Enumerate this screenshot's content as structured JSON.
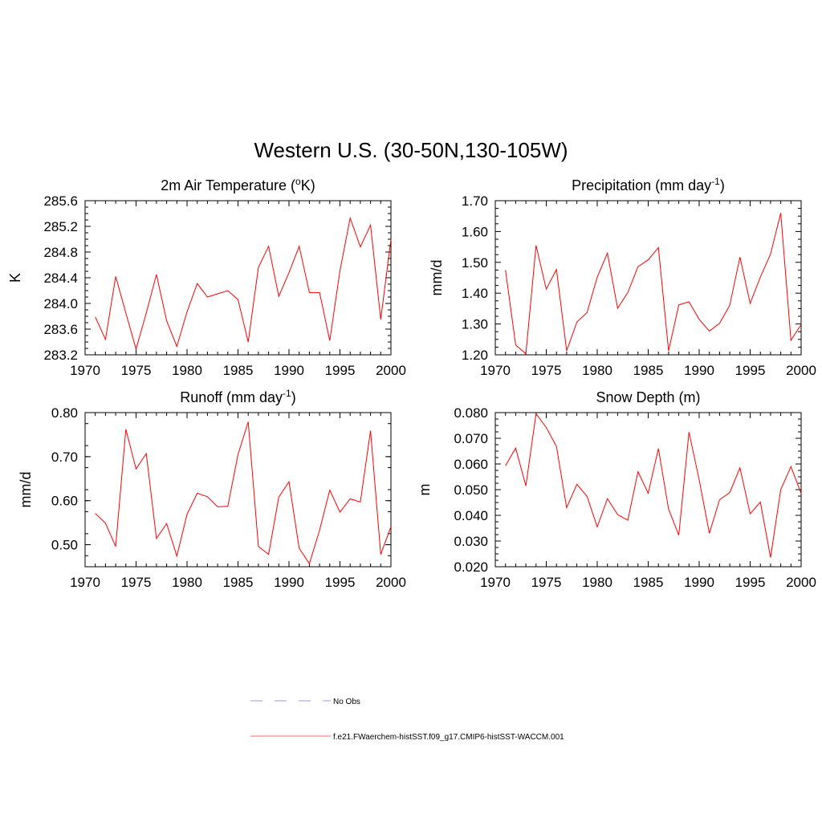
{
  "figure": {
    "title": "Western U.S. (30-50N,130-105W)"
  },
  "chart_data": [
    {
      "type": "line",
      "title": "2m Air Temperature (°K)",
      "title_parts": [
        "2m Air Temperature (",
        "o",
        "K)"
      ],
      "ylabel": "K",
      "xlim": [
        1970,
        2000
      ],
      "ylim": [
        283.2,
        285.6
      ],
      "xticks": [
        1970,
        1975,
        1980,
        1985,
        1990,
        1995,
        2000
      ],
      "yticks": [
        "283.2",
        "283.6",
        "284.0",
        "284.4",
        "284.8",
        "285.2",
        "285.6"
      ],
      "x": [
        1971,
        1972,
        1973,
        1974,
        1975,
        1976,
        1977,
        1978,
        1979,
        1980,
        1981,
        1982,
        1983,
        1984,
        1985,
        1986,
        1987,
        1988,
        1989,
        1990,
        1991,
        1992,
        1993,
        1994,
        1995,
        1996,
        1997,
        1998,
        1999,
        2000
      ],
      "series": [
        {
          "values": [
            283.79,
            283.44,
            284.42,
            283.85,
            283.29,
            283.85,
            284.45,
            283.73,
            283.33,
            283.87,
            284.31,
            284.1,
            284.15,
            284.2,
            284.06,
            283.4,
            284.56,
            284.89,
            284.11,
            284.48,
            284.89,
            284.17,
            284.17,
            283.42,
            284.51,
            285.33,
            284.88,
            285.22,
            283.75,
            285.0
          ],
          "color": "#ff0000"
        }
      ]
    },
    {
      "type": "line",
      "title": "Precipitation (mm day-1)",
      "title_parts": [
        "Precipitation (mm day",
        "-1",
        ")"
      ],
      "ylabel": "mm/d",
      "xlim": [
        1970,
        2000
      ],
      "ylim": [
        1.2,
        1.7
      ],
      "xticks": [
        1970,
        1975,
        1980,
        1985,
        1990,
        1995,
        2000
      ],
      "yticks": [
        "1.20",
        "1.30",
        "1.40",
        "1.50",
        "1.60",
        "1.70"
      ],
      "x": [
        1971,
        1972,
        1973,
        1974,
        1975,
        1976,
        1977,
        1978,
        1979,
        1980,
        1981,
        1982,
        1983,
        1984,
        1985,
        1986,
        1987,
        1988,
        1989,
        1990,
        1991,
        1992,
        1993,
        1994,
        1995,
        1996,
        1997,
        1998,
        1999,
        2000
      ],
      "series": [
        {
          "values": [
            1.475,
            1.232,
            1.203,
            1.555,
            1.413,
            1.477,
            1.213,
            1.306,
            1.337,
            1.452,
            1.53,
            1.351,
            1.402,
            1.486,
            1.508,
            1.548,
            1.213,
            1.362,
            1.372,
            1.315,
            1.277,
            1.302,
            1.361,
            1.517,
            1.367,
            1.452,
            1.527,
            1.66,
            1.247,
            1.298
          ],
          "color": "#ff0000"
        }
      ]
    },
    {
      "type": "line",
      "title": "Runoff (mm day-1)",
      "title_parts": [
        "Runoff (mm day",
        "-1",
        ")"
      ],
      "ylabel": "mm/d",
      "xlim": [
        1970,
        2000
      ],
      "ylim": [
        0.45,
        0.8
      ],
      "xticks": [
        1970,
        1975,
        1980,
        1985,
        1990,
        1995,
        2000
      ],
      "yticks": [
        "0.50",
        "0.60",
        "0.70",
        "0.80"
      ],
      "x": [
        1971,
        1972,
        1973,
        1974,
        1975,
        1976,
        1977,
        1978,
        1979,
        1980,
        1981,
        1982,
        1983,
        1984,
        1985,
        1986,
        1987,
        1988,
        1989,
        1990,
        1991,
        1992,
        1993,
        1994,
        1995,
        1996,
        1997,
        1998,
        1999,
        2000
      ],
      "series": [
        {
          "values": [
            0.571,
            0.549,
            0.496,
            0.762,
            0.672,
            0.707,
            0.514,
            0.548,
            0.474,
            0.569,
            0.617,
            0.609,
            0.586,
            0.587,
            0.705,
            0.779,
            0.496,
            0.478,
            0.608,
            0.643,
            0.492,
            0.457,
            0.533,
            0.624,
            0.574,
            0.604,
            0.597,
            0.759,
            0.478,
            0.541
          ],
          "color": "#ff0000"
        }
      ]
    },
    {
      "type": "line",
      "title": "Snow Depth (m)",
      "title_parts": [
        "Snow Depth (m)",
        "",
        ""
      ],
      "ylabel": "m",
      "xlim": [
        1970,
        2000
      ],
      "ylim": [
        0.02,
        0.08
      ],
      "xticks": [
        1970,
        1975,
        1980,
        1985,
        1990,
        1995,
        2000
      ],
      "yticks": [
        "0.020",
        "0.030",
        "0.040",
        "0.050",
        "0.060",
        "0.070",
        "0.080"
      ],
      "x": [
        1971,
        1972,
        1973,
        1974,
        1975,
        1976,
        1977,
        1978,
        1979,
        1980,
        1981,
        1982,
        1983,
        1984,
        1985,
        1986,
        1987,
        1988,
        1989,
        1990,
        1991,
        1992,
        1993,
        1994,
        1995,
        1996,
        1997,
        1998,
        1999,
        2000
      ],
      "series": [
        {
          "values": [
            0.0593,
            0.0662,
            0.0515,
            0.0796,
            0.0742,
            0.0668,
            0.043,
            0.0521,
            0.0474,
            0.0355,
            0.0465,
            0.0403,
            0.0381,
            0.057,
            0.0486,
            0.066,
            0.0424,
            0.0323,
            0.0724,
            0.0538,
            0.033,
            0.0461,
            0.0489,
            0.0585,
            0.0406,
            0.0452,
            0.0236,
            0.05,
            0.059,
            0.0485
          ],
          "color": "#ff0000"
        }
      ]
    }
  ],
  "legend": {
    "items": [
      {
        "label": "No Obs",
        "color": "#9999dd",
        "dash": true
      },
      {
        "label": "f.e21.FWaerchem-histSST.f09_g17.CMIP6-histSST-WACCM.001",
        "color": "#ff6666",
        "dash": false
      }
    ]
  }
}
